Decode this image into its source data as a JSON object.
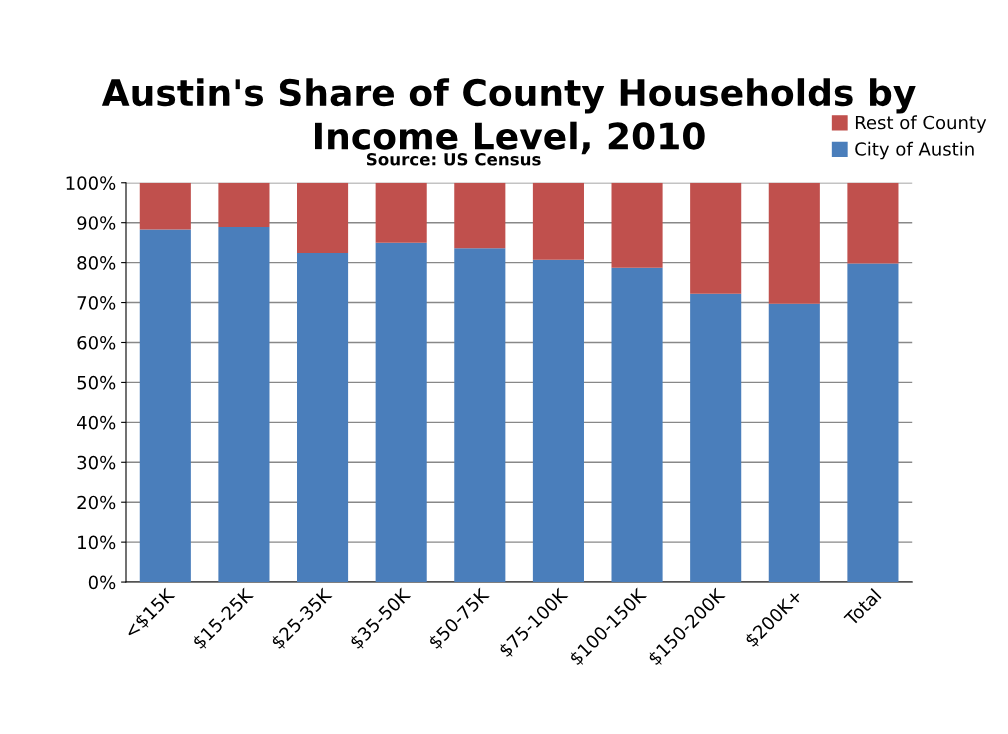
{
  "chart_data": {
    "type": "bar",
    "stacked": true,
    "title": "Austin's Share of County Households by\nIncome Level, 2010",
    "subtitle": "Source: US Census",
    "categories": [
      "<$15K",
      "$15-25K",
      "$25-35K",
      "$35-50K",
      "$50-75K",
      "$75-100K",
      "$100-150K",
      "$150-200K",
      "$200K+",
      "Total"
    ],
    "series": [
      {
        "name": "City of Austin",
        "color": "#4a7ebb",
        "values": [
          88.3,
          88.9,
          82.4,
          85.0,
          83.6,
          80.7,
          78.7,
          72.2,
          69.7,
          79.8
        ]
      },
      {
        "name": "Rest of County",
        "color": "#c0504d",
        "values": [
          11.7,
          11.1,
          17.6,
          15.0,
          16.4,
          19.3,
          21.3,
          27.8,
          30.3,
          20.2
        ]
      }
    ],
    "ylim": [
      0,
      100
    ],
    "yticks": [
      {
        "value": 0,
        "label": "0%"
      },
      {
        "value": 10,
        "label": "10%"
      },
      {
        "value": 20,
        "label": "20%"
      },
      {
        "value": 30,
        "label": "30%"
      },
      {
        "value": 40,
        "label": "40%"
      },
      {
        "value": 50,
        "label": "50%"
      },
      {
        "value": 60,
        "label": "60%"
      },
      {
        "value": 70,
        "label": "70%"
      },
      {
        "value": 80,
        "label": "80%"
      },
      {
        "value": 90,
        "label": "90%"
      },
      {
        "value": 100,
        "label": "100%"
      }
    ],
    "grid": "y",
    "legend": "top right"
  }
}
